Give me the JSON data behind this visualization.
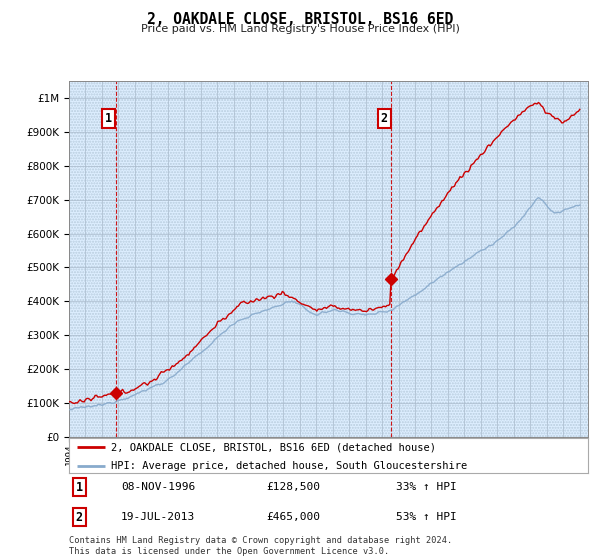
{
  "title": "2, OAKDALE CLOSE, BRISTOL, BS16 6ED",
  "subtitle": "Price paid vs. HM Land Registry's House Price Index (HPI)",
  "legend_line1": "2, OAKDALE CLOSE, BRISTOL, BS16 6ED (detached house)",
  "legend_line2": "HPI: Average price, detached house, South Gloucestershire",
  "annotation1_label": "1",
  "annotation1_date": "08-NOV-1996",
  "annotation1_price": "£128,500",
  "annotation1_hpi": "33% ↑ HPI",
  "annotation2_label": "2",
  "annotation2_date": "19-JUL-2013",
  "annotation2_price": "£465,000",
  "annotation2_hpi": "53% ↑ HPI",
  "footer": "Contains HM Land Registry data © Crown copyright and database right 2024.\nThis data is licensed under the Open Government Licence v3.0.",
  "ylim": [
    0,
    1050000
  ],
  "xlim": [
    1994,
    2025.5
  ],
  "sale1_x": 1996.86,
  "sale1_y": 128500,
  "sale2_x": 2013.54,
  "sale2_y": 465000,
  "red_line_color": "#cc0000",
  "blue_line_color": "#88aacc",
  "vline_color": "#cc0000",
  "grid_color": "#cccccc",
  "bg_color": "#ddeeff",
  "hatch_color": "#c8d8e8"
}
